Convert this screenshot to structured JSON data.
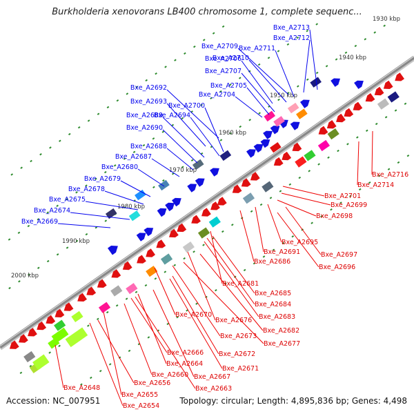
{
  "title": "Burkholderia xenovorans LB400 chromosome 1, complete sequenc...",
  "footer": {
    "accession": "Accession: NC_007951",
    "topology": "Topology: circular; Length: 4,895,836 bp; Genes: 4,498"
  },
  "colors": {
    "positive_strand": "#1010e0",
    "negative_strand": "#e01010",
    "backbone": "#888888"
  },
  "kbp_ticks": [
    "1930 kbp",
    "1940 kbp",
    "1950 kbp",
    "1960 kbp",
    "1970 kbp",
    "1980 kbp",
    "1990 kbp",
    "2000 kbp"
  ],
  "positive_labels": [
    "Bxe_A2713",
    "Bxe_A2712",
    "Bxe_A2709",
    "Bxe_A2711",
    "Bxe_A2706",
    "Bxe_A2710",
    "Bxe_A2707",
    "Bxe_A2692",
    "Bxe_A2705",
    "Bxe_A2704",
    "Bxe_A2693",
    "Bxe_A2700",
    "Bxe_A2689",
    "Bxe_A2694",
    "Bxe_A2690",
    "Bxe_A2688",
    "Bxe_A2687",
    "Bxe_A2680",
    "Bxe_A2679",
    "Bxe_A2678",
    "Bxe_A2675",
    "Bxe_A2674",
    "Bxe_A2669"
  ],
  "negative_labels": [
    "Bxe_A2716",
    "Bxe_A2714",
    "Bxe_A2701",
    "Bxe_A2699",
    "Bxe_A2698",
    "Bxe_A2695",
    "Bxe_A2691",
    "Bxe_A2697",
    "Bxe_A2686",
    "Bxe_A2696",
    "Bxe_A2681",
    "Bxe_A2685",
    "Bxe_A2684",
    "Bxe_A2683",
    "Bxe_A2670",
    "Bxe_A2676",
    "Bxe_A2682",
    "Bxe_A2673",
    "Bxe_A2677",
    "Bxe_A2666",
    "Bxe_A2672",
    "Bxe_A2664",
    "Bxe_A2671",
    "Bxe_A2660",
    "Bxe_A2667",
    "Bxe_A2656",
    "Bxe_A2663",
    "Bxe_A2648",
    "Bxe_A2655",
    "Bxe_A2654"
  ]
}
